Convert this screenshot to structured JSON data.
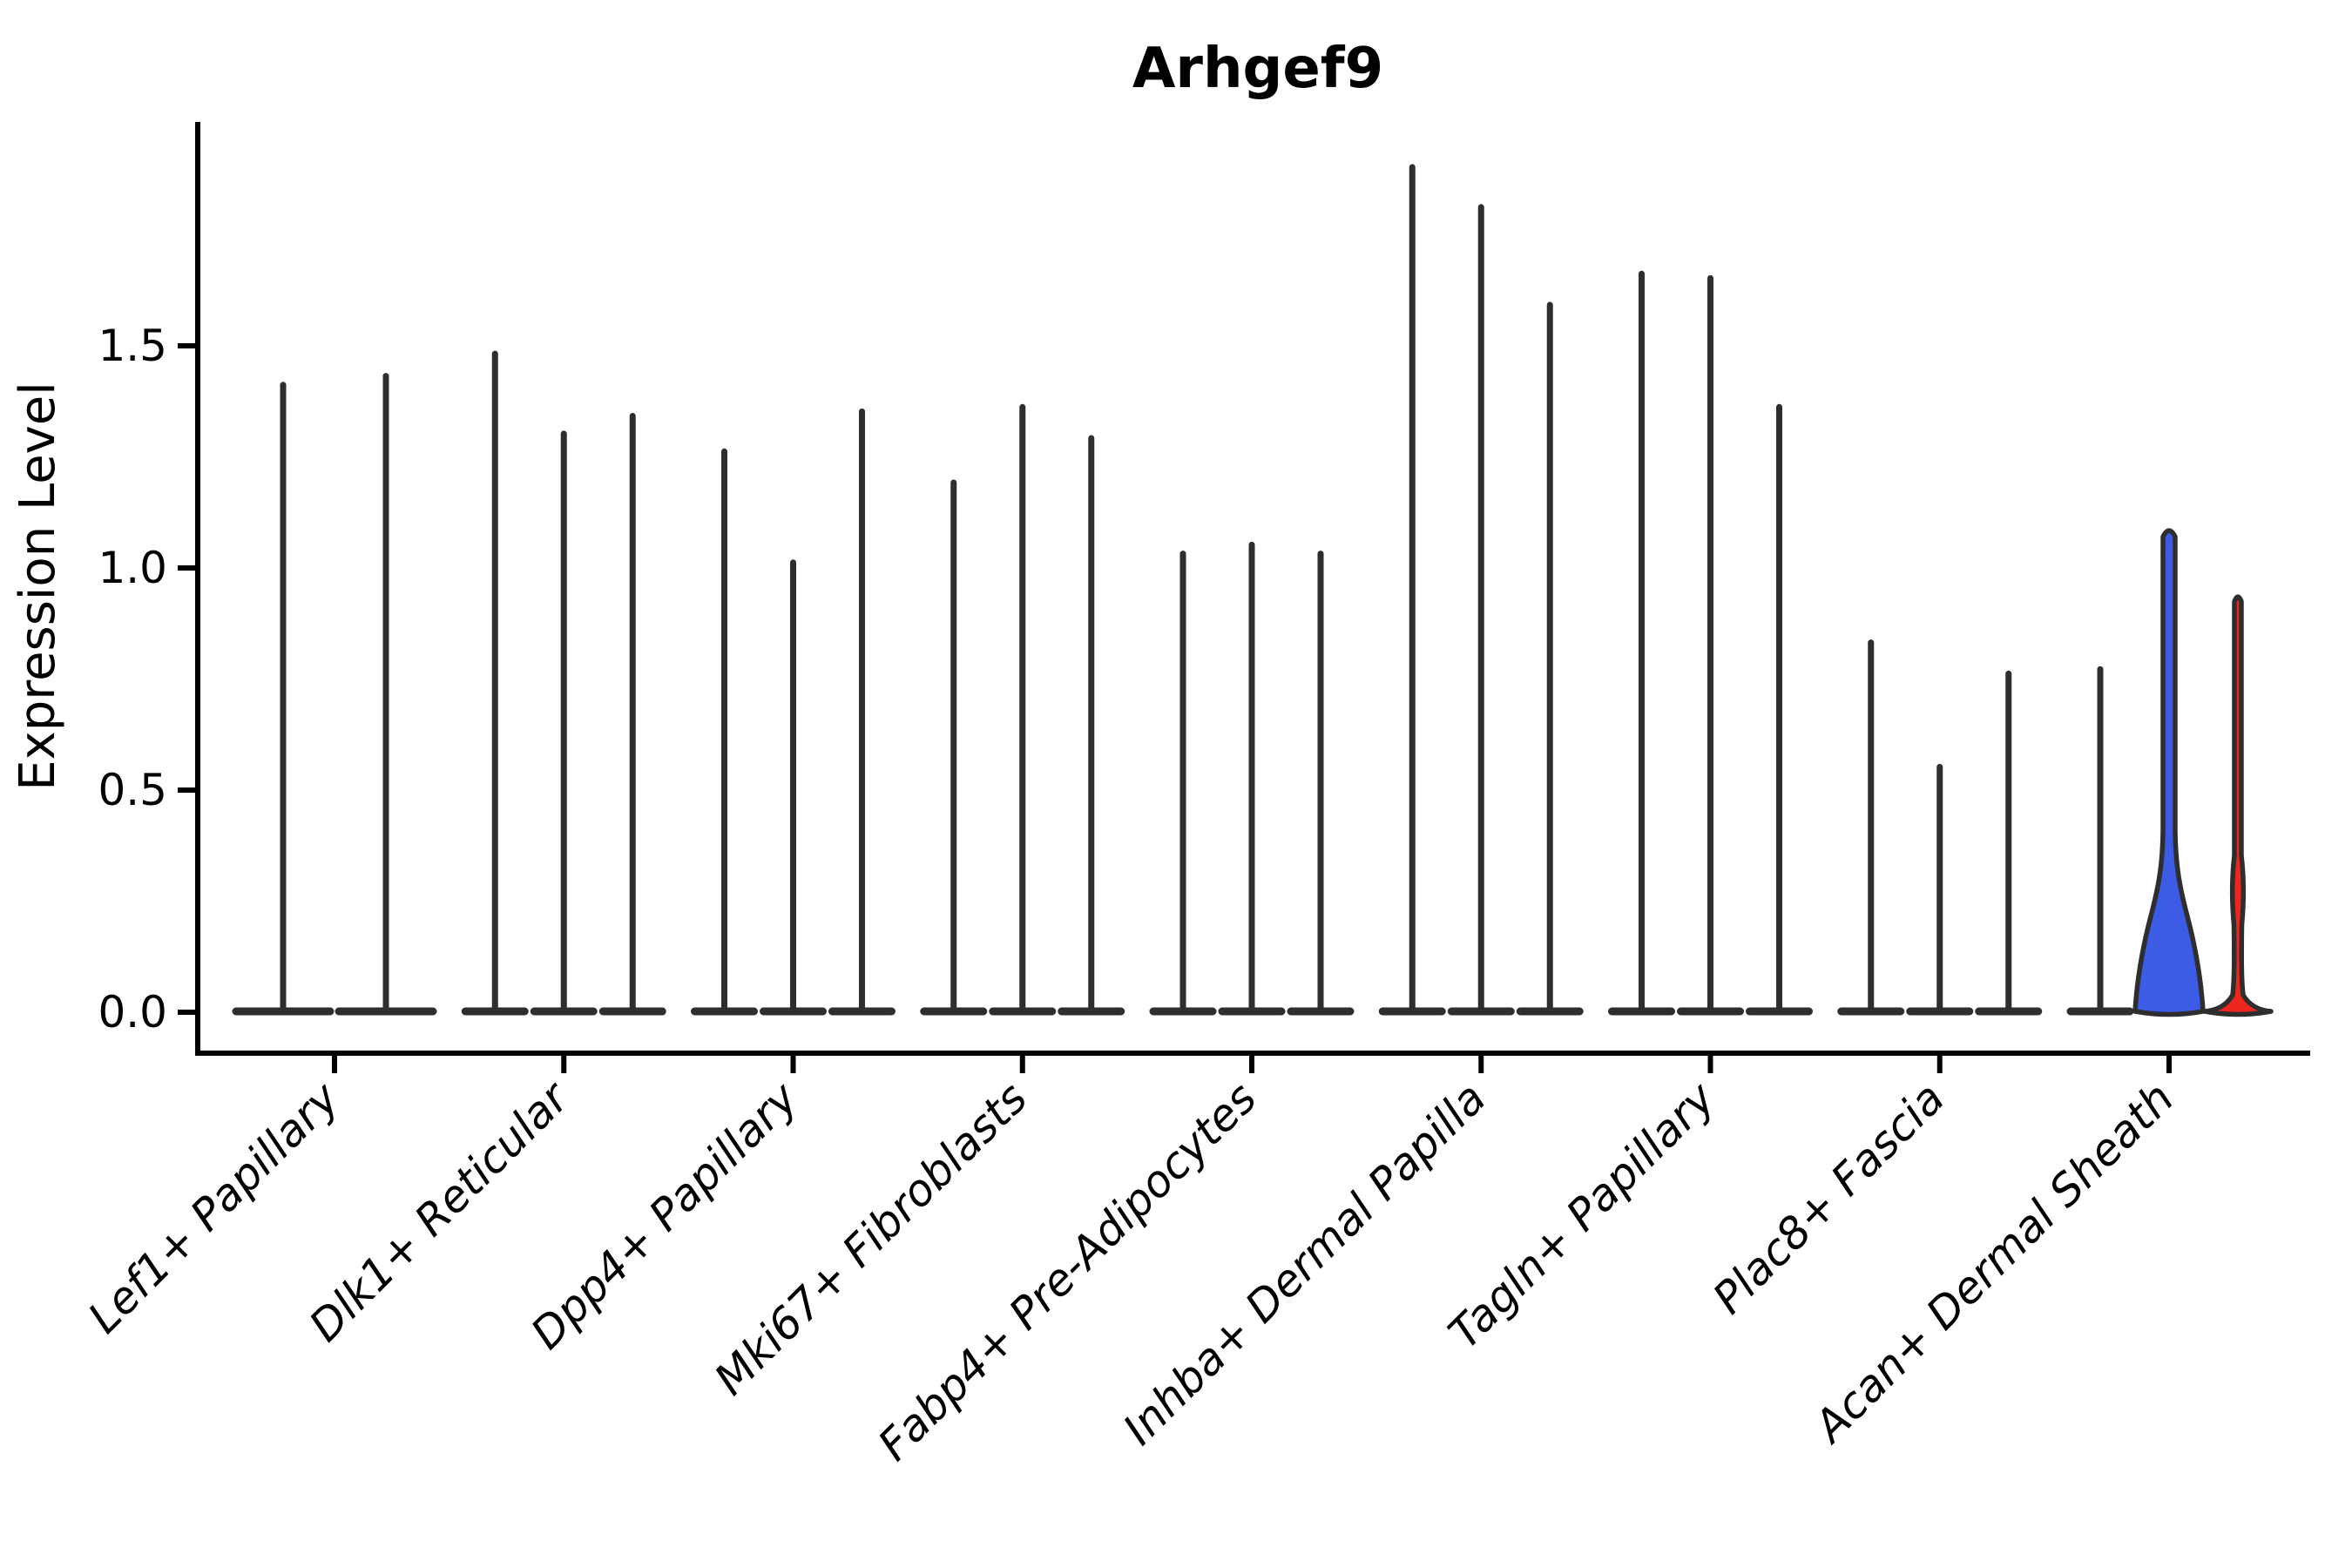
{
  "title": "Arhgef9",
  "y_axis": {
    "label": "Expression Level",
    "tick_labels": [
      "0.0",
      "0.5",
      "1.0",
      "1.5"
    ]
  },
  "colors": {
    "violin_outline": "#2e2e2e",
    "axis": "#000000",
    "blue_fill": "#3D5CE5",
    "red_fill": "#EE261D"
  },
  "chart_data": {
    "type": "violin",
    "title": "Arhgef9",
    "xlabel": "",
    "ylabel": "Expression Level",
    "yticks": [
      0.0,
      0.5,
      1.0,
      1.5
    ],
    "ylim": [
      -0.09,
      2.0
    ],
    "grid": false,
    "legend": "none",
    "categories": [
      "Lef1+ Papillary",
      "Dlk1+ Reticular",
      "Dpp4+ Papillary",
      "Mki67+ Fibroblasts",
      "Fabp4+ Pre-Adipocytes",
      "Inhba+ Dermal Papilla",
      "Tagln+ Papillary",
      "Plac8+ Fascia",
      "Acan+ Dermal Sheath"
    ],
    "groups": [
      {
        "category": "Lef1+ Papillary",
        "violins": [
          {
            "peak": 1.42,
            "shape": "needle",
            "fill": "none"
          },
          {
            "peak": 1.44,
            "shape": "needle",
            "fill": "none"
          }
        ]
      },
      {
        "category": "Dlk1+ Reticular",
        "violins": [
          {
            "peak": 1.49,
            "shape": "needle",
            "fill": "none"
          },
          {
            "peak": 1.31,
            "shape": "needle",
            "fill": "none"
          },
          {
            "peak": 1.35,
            "shape": "needle",
            "fill": "none"
          }
        ]
      },
      {
        "category": "Dpp4+ Papillary",
        "violins": [
          {
            "peak": 1.27,
            "shape": "needle",
            "fill": "none"
          },
          {
            "peak": 1.02,
            "shape": "needle",
            "fill": "none"
          },
          {
            "peak": 1.36,
            "shape": "needle",
            "fill": "none"
          }
        ]
      },
      {
        "category": "Mki67+ Fibroblasts",
        "violins": [
          {
            "peak": 1.2,
            "shape": "needle",
            "fill": "none"
          },
          {
            "peak": 1.37,
            "shape": "needle",
            "fill": "none"
          },
          {
            "peak": 1.3,
            "shape": "needle",
            "fill": "none"
          }
        ]
      },
      {
        "category": "Fabp4+ Pre-Adipocytes",
        "violins": [
          {
            "peak": 1.04,
            "shape": "needle",
            "fill": "none"
          },
          {
            "peak": 1.06,
            "shape": "needle",
            "fill": "none"
          },
          {
            "peak": 1.04,
            "shape": "needle",
            "fill": "none"
          }
        ]
      },
      {
        "category": "Inhba+ Dermal Papilla",
        "violins": [
          {
            "peak": 1.91,
            "shape": "needle",
            "fill": "none"
          },
          {
            "peak": 1.82,
            "shape": "needle",
            "fill": "none"
          },
          {
            "peak": 1.6,
            "shape": "needle",
            "fill": "none"
          }
        ]
      },
      {
        "category": "Tagln+ Papillary",
        "violins": [
          {
            "peak": 1.67,
            "shape": "needle",
            "fill": "none"
          },
          {
            "peak": 1.66,
            "shape": "needle",
            "fill": "none"
          },
          {
            "peak": 1.37,
            "shape": "needle",
            "fill": "none"
          }
        ]
      },
      {
        "category": "Plac8+ Fascia",
        "violins": [
          {
            "peak": 0.84,
            "shape": "needle",
            "fill": "none"
          },
          {
            "peak": 0.56,
            "shape": "needle",
            "fill": "none"
          },
          {
            "peak": 0.77,
            "shape": "needle",
            "fill": "none"
          }
        ]
      },
      {
        "category": "Acan+ Dermal Sheath",
        "violins": [
          {
            "peak": 0.78,
            "shape": "needle",
            "fill": "none"
          },
          {
            "peak": 1.09,
            "shape": "bulge",
            "fill": "#3D5CE5"
          },
          {
            "peak": 0.94,
            "shape": "mound",
            "fill": "#EE261D"
          }
        ]
      }
    ]
  }
}
